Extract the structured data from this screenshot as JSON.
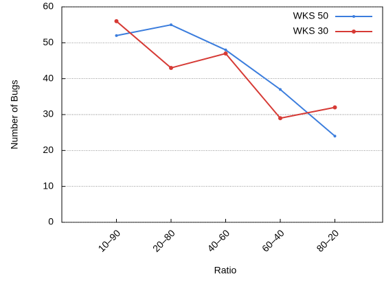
{
  "chart_data": {
    "type": "line",
    "x_label": "Ratio",
    "y_label": "Number of Bugs",
    "categories": [
      "10–90",
      "20–80",
      "40–60",
      "60–40",
      "80–20"
    ],
    "series": [
      {
        "name": "WKS 50",
        "color": "#3b7ddd",
        "values": [
          52,
          55,
          48,
          37,
          24
        ]
      },
      {
        "name": "WKS 30",
        "color": "#d63a35",
        "values": [
          56,
          43,
          47,
          29,
          32
        ]
      }
    ],
    "ylim": [
      0,
      60
    ],
    "yticks": [
      0,
      10,
      20,
      30,
      40,
      50,
      60
    ],
    "grid": true,
    "legend": "top-right"
  }
}
